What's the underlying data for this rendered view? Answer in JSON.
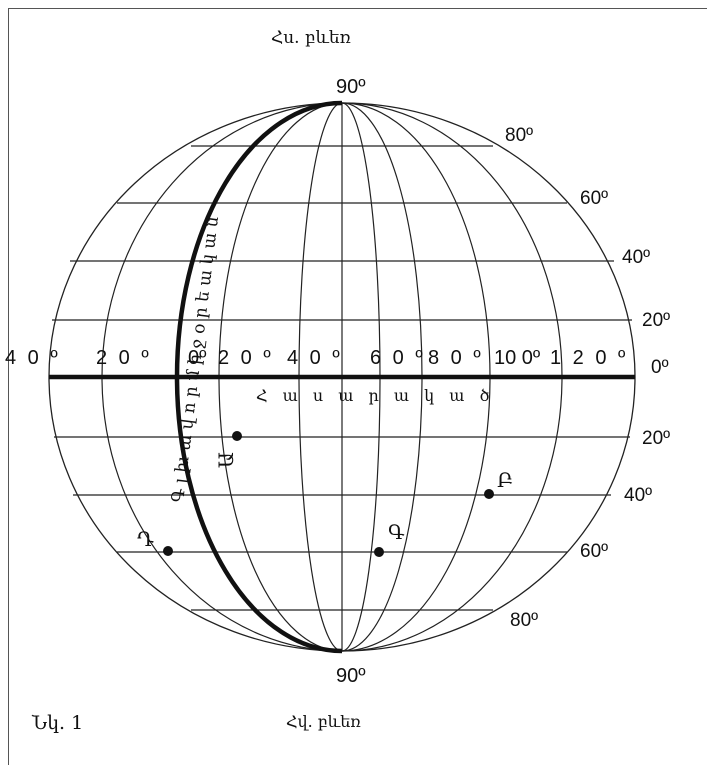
{
  "diagram": {
    "north_pole_label": "Հս. բևեռ",
    "south_pole_label": "Հվ. բևեռ",
    "top_pole_degree": "90º",
    "bottom_pole_degree": "90º",
    "figure_caption": "Նկ. 1",
    "prime_meridian_caption": "Գ լ խ ա վ ո ր մ ի ջ օ ր ե ա կ ա ն",
    "equator_caption": "Հ ա ս ա ր ա կ ա ծ",
    "north_latitudes": [
      "80º",
      "60º",
      "40º",
      "20º"
    ],
    "equator_degree": "0º",
    "south_latitudes": [
      "20º",
      "40º",
      "60º",
      "80º"
    ],
    "longitude_labels": [
      "4 0 º",
      "2 0 º",
      "0º",
      "2 0 º",
      "4 0 º",
      "6 0 º",
      "8 0 º",
      "10 0º",
      "1 2 0 º"
    ],
    "points": [
      {
        "label": "Ա",
        "color": "#111111"
      },
      {
        "label": "Բ",
        "color": "#111111"
      },
      {
        "label": "Գ",
        "color": "#111111"
      },
      {
        "label": "Դ",
        "color": "#111111"
      }
    ]
  }
}
